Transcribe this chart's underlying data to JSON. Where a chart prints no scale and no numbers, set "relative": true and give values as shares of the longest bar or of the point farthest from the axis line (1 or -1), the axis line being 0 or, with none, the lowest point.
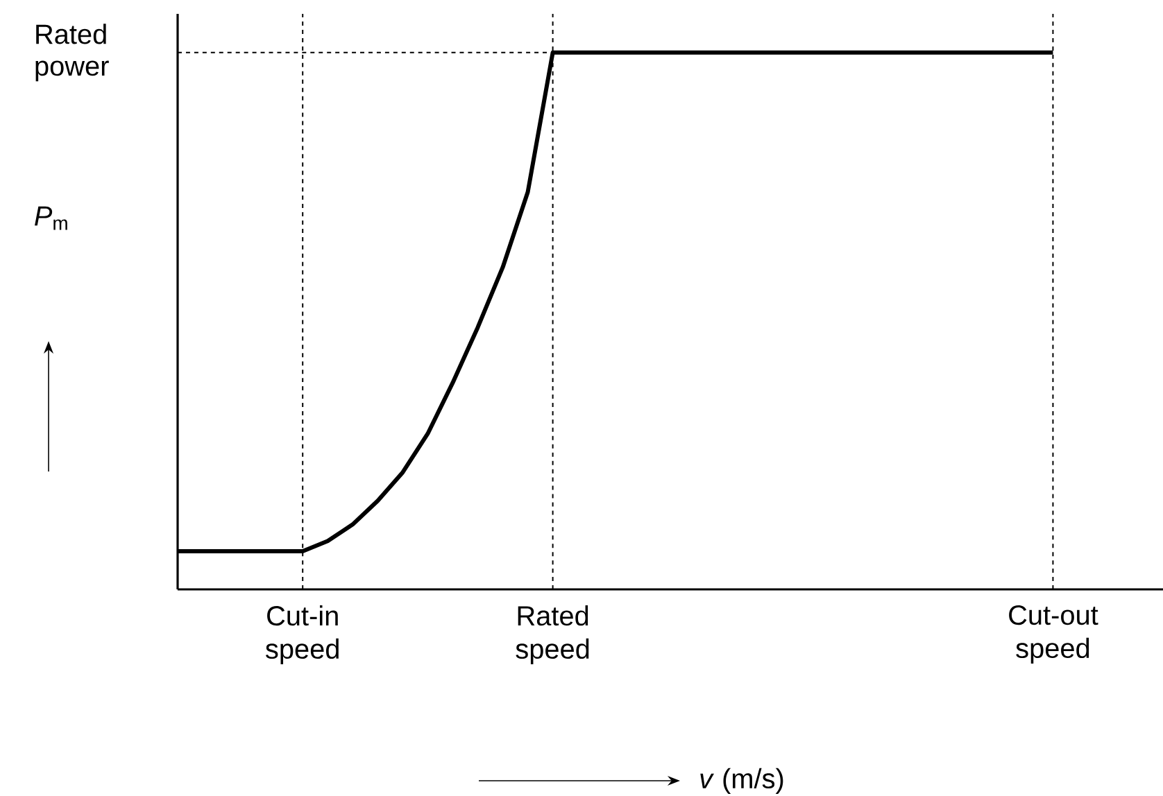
{
  "chart_data": {
    "type": "line",
    "relative": true,
    "xlabel": "*v* (m/s)",
    "ylabel": "*P*$_{m}$",
    "categories": [
      null,
      null,
      null,
      null,
      null,
      "Cut-in speed",
      null,
      null,
      null,
      null,
      null,
      null,
      null,
      null,
      null,
      "Rated speed",
      null,
      null,
      null,
      null,
      null,
      null,
      null,
      null,
      null,
      null,
      null,
      null,
      null,
      null,
      null,
      null,
      null,
      null,
      null,
      "Cut-out speed"
    ],
    "series": [
      {
        "color": "#000000",
        "values": [
          0.071,
          0.071,
          0.071,
          0.071,
          0.071,
          0.071,
          0.09,
          0.121,
          0.165,
          0.218,
          0.29,
          0.385,
          0.488,
          0.6,
          0.74,
          1,
          1,
          1,
          1,
          1,
          1,
          1,
          1,
          1,
          1,
          1,
          1,
          1,
          1,
          1,
          1,
          1,
          1,
          1,
          1,
          1
        ]
      }
    ],
    "ref_lines": [
      {
        "axis": "y",
        "value": 1,
        "label": "Rated power",
        "line_style": "dashed"
      }
    ],
    "grid": "x",
    "marker": "none",
    "line_style": "solid"
  }
}
